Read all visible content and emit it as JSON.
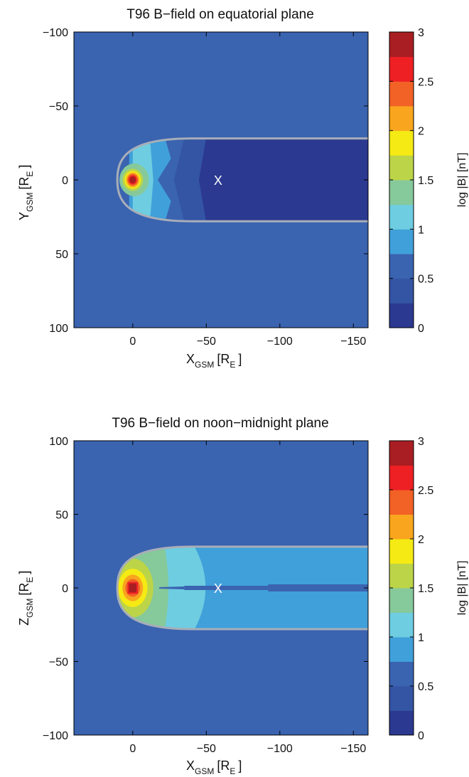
{
  "chart_data": [
    {
      "type": "heatmap",
      "title": "T96 B−field on equatorial plane",
      "xlabel": "X",
      "xlabel_sub": "GSM",
      "xlabel_unit": "[R",
      "xlabel_unit_sub": "E",
      "xlabel_close": "]",
      "ylabel": "Y",
      "ylabel_sub": "GSM",
      "ylabel_unit": "[R",
      "ylabel_unit_sub": "E",
      "ylabel_close": "]",
      "xlim": [
        40,
        -160
      ],
      "ylim": [
        -100,
        100
      ],
      "x_reversed": true,
      "y_reversed": true,
      "x_ticks": [
        0,
        -50,
        -100,
        -150
      ],
      "x_tick_labels": [
        "0",
        "−50",
        "−100",
        "−150"
      ],
      "y_ticks": [
        -100,
        -50,
        0,
        50,
        100
      ],
      "y_tick_labels": [
        "−100",
        "−50",
        "0",
        "50",
        "100"
      ],
      "marker": {
        "x": -58,
        "y": 0,
        "label": "X"
      },
      "magnetopause_standoff_x": 10.5,
      "magnetopause_tail_halfwidth": 28,
      "colorbar": {
        "label": "log |B| [nT]",
        "ticks": [
          0,
          0.5,
          1,
          1.5,
          2,
          2.5,
          3
        ],
        "tick_labels": [
          "0",
          "0.5",
          "1",
          "1.5",
          "2",
          "2.5",
          "3"
        ]
      }
    },
    {
      "type": "heatmap",
      "title": "T96 B−field on noon−midnight plane",
      "xlabel": "X",
      "xlabel_sub": "GSM",
      "xlabel_unit": "[R",
      "xlabel_unit_sub": "E",
      "xlabel_close": "]",
      "ylabel": "Z",
      "ylabel_sub": "GSM",
      "ylabel_unit": "[R",
      "ylabel_unit_sub": "E",
      "ylabel_close": "]",
      "xlim": [
        40,
        -160
      ],
      "ylim": [
        -100,
        100
      ],
      "x_reversed": true,
      "y_reversed": false,
      "x_ticks": [
        0,
        -50,
        -100,
        -150
      ],
      "x_tick_labels": [
        "0",
        "−50",
        "−100",
        "−150"
      ],
      "y_ticks": [
        100,
        50,
        0,
        -50,
        -100
      ],
      "y_tick_labels": [
        "100",
        "50",
        "0",
        "−50",
        "−100"
      ],
      "marker": {
        "x": -58,
        "y": 0,
        "label": "X"
      },
      "magnetopause_standoff_x": 10.5,
      "magnetopause_tail_halfwidth": 28,
      "colorbar": {
        "label": "log |B| [nT]",
        "ticks": [
          0,
          0.5,
          1,
          1.5,
          2,
          2.5,
          3
        ],
        "tick_labels": [
          "0",
          "0.5",
          "1",
          "1.5",
          "2",
          "2.5",
          "3"
        ]
      }
    }
  ],
  "colormap": [
    "#2b3990",
    "#3454a4",
    "#3a63b0",
    "#40a0da",
    "#6ecde0",
    "#86c99a",
    "#bcd448",
    "#f5ea14",
    "#f9a51e",
    "#f26125",
    "#ee2024",
    "#a91e22"
  ],
  "colors": {
    "background_field": "#3a63b0",
    "magnetopause_line": "#a8aeb8",
    "marker": "#ffffff",
    "frame": "#000000"
  }
}
